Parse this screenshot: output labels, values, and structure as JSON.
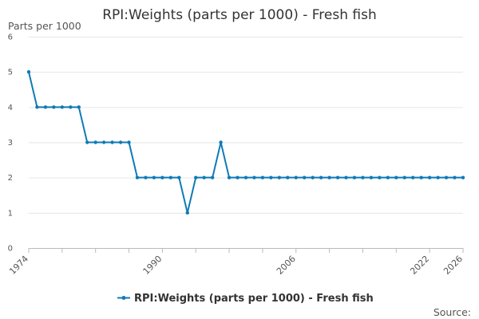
{
  "chart_data": {
    "type": "line",
    "title": "RPI:Weights (parts per 1000) - Fresh fish",
    "ylabel": "Parts per 1000",
    "xlabel": "",
    "ylim": [
      0,
      6
    ],
    "xlim": [
      1974,
      2026
    ],
    "y_ticks": [
      "0",
      "1",
      "2",
      "3",
      "4",
      "5",
      "6"
    ],
    "x_ticks": [
      "1974",
      "1990",
      "2006",
      "2022",
      "2026"
    ],
    "grid": true,
    "legend_position": "bottom",
    "series": [
      {
        "name": "RPI:Weights (parts per 1000) - Fresh fish",
        "color": "#0f7ab6",
        "x": [
          1974,
          1975,
          1976,
          1977,
          1978,
          1979,
          1980,
          1981,
          1982,
          1983,
          1984,
          1985,
          1986,
          1987,
          1988,
          1989,
          1990,
          1991,
          1992,
          1993,
          1994,
          1995,
          1996,
          1997,
          1998,
          1999,
          2000,
          2001,
          2002,
          2003,
          2004,
          2005,
          2006,
          2007,
          2008,
          2009,
          2010,
          2011,
          2012,
          2013,
          2014,
          2015,
          2016,
          2017,
          2018,
          2019,
          2020,
          2021,
          2022,
          2023,
          2024,
          2025,
          2026
        ],
        "values": [
          5,
          4,
          4,
          4,
          4,
          4,
          4,
          3,
          3,
          3,
          3,
          3,
          3,
          2,
          2,
          2,
          2,
          2,
          2,
          1,
          2,
          2,
          2,
          3,
          2,
          2,
          2,
          2,
          2,
          2,
          2,
          2,
          2,
          2,
          2,
          2,
          2,
          2,
          2,
          2,
          2,
          2,
          2,
          2,
          2,
          2,
          2,
          2,
          2,
          2,
          2,
          2,
          2
        ]
      }
    ],
    "source_label": "Source:"
  }
}
